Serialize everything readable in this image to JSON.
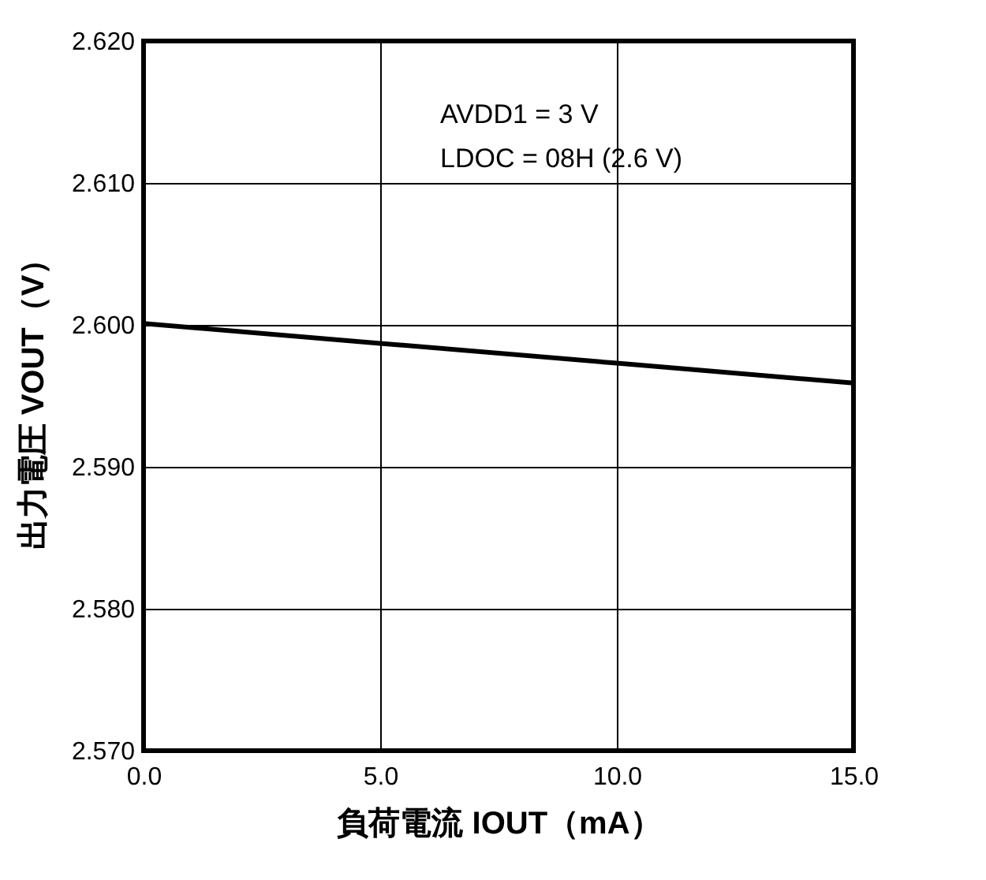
{
  "chart_data": {
    "type": "line",
    "xlabel": "負荷電流 IOUT（mA）",
    "ylabel": "出力電圧 VOUT（V）",
    "x": [
      0,
      5,
      10,
      15
    ],
    "series": [
      {
        "color": "#000000",
        "values": [
          2.6001,
          2.5987,
          2.5973,
          2.5959
        ]
      }
    ],
    "xlim": [
      0,
      15
    ],
    "ylim": [
      2.57,
      2.62
    ],
    "xticks": [
      {
        "value": 0,
        "label": "0.0"
      },
      {
        "value": 5,
        "label": "5.0"
      },
      {
        "value": 10,
        "label": "10.0"
      },
      {
        "value": 15,
        "label": "15.0"
      }
    ],
    "yticks": [
      {
        "value": 2.57,
        "label": "2.570"
      },
      {
        "value": 2.58,
        "label": "2.580"
      },
      {
        "value": 2.59,
        "label": "2.590"
      },
      {
        "value": 2.6,
        "label": "2.600"
      },
      {
        "value": 2.61,
        "label": "2.610"
      },
      {
        "value": 2.62,
        "label": "2.620"
      }
    ],
    "annotations": [
      "AVDD1 = 3 V",
      "LDOC = 08H (2.6 V)"
    ],
    "grid": true,
    "marker": "none",
    "line_style": "solid"
  }
}
